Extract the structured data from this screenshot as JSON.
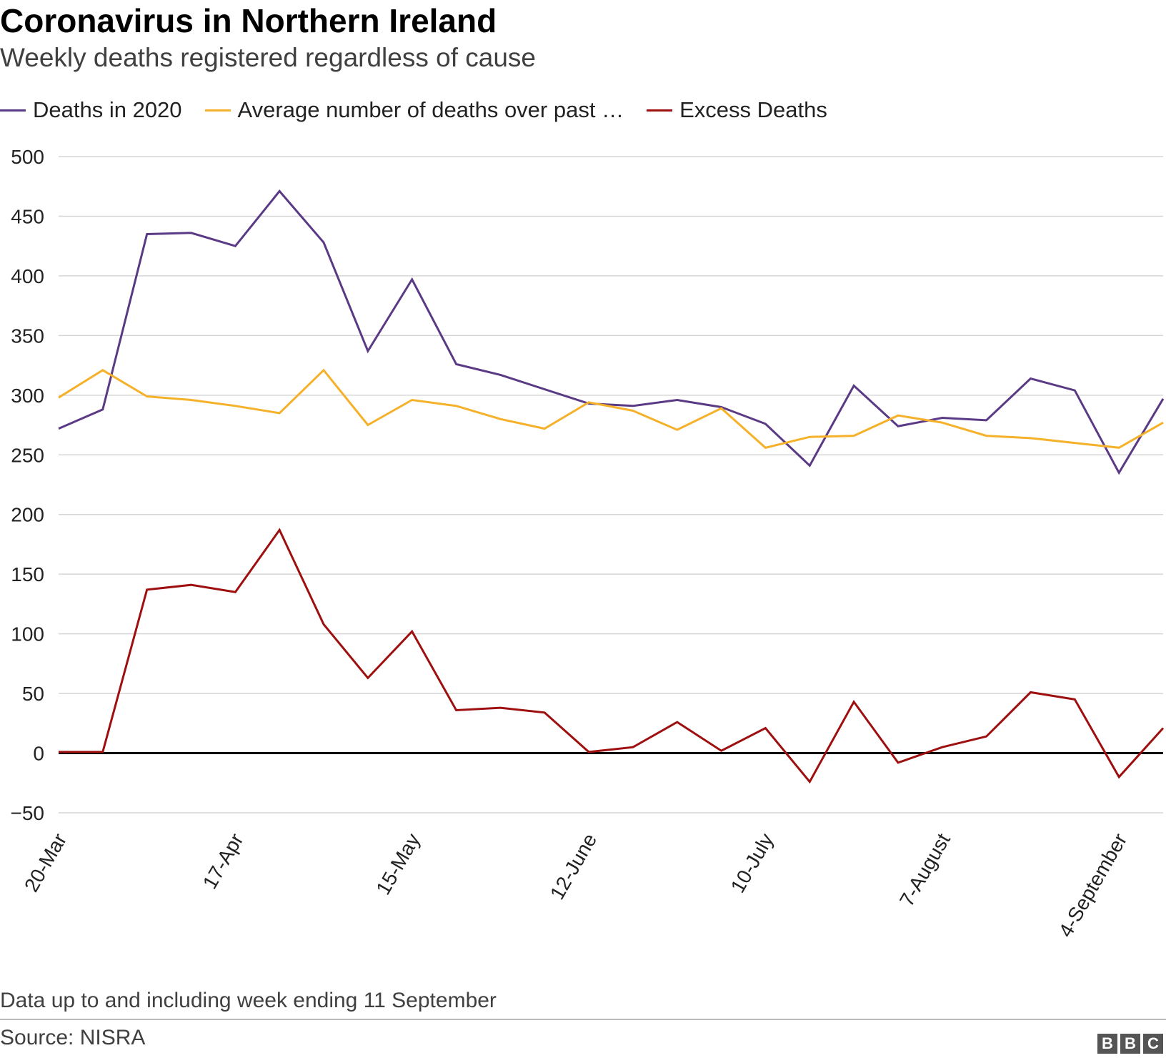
{
  "header": {
    "title": "Coronavirus in Northern Ireland",
    "subtitle": "Weekly deaths registered regardless of cause"
  },
  "legend": [
    {
      "label": "Deaths in 2020",
      "color": "#5b3a85"
    },
    {
      "label": "Average number of deaths over past …",
      "color": "#f5b12a"
    },
    {
      "label": "Excess Deaths",
      "color": "#9e1010"
    }
  ],
  "footer": {
    "note": "Data up to and including week ending 11 September",
    "source": "Source: NISRA",
    "logo_letters": [
      "B",
      "B",
      "C"
    ]
  },
  "colors": {
    "grid": "#d6d6d6",
    "zero_line": "#000000",
    "axis_text": "#222222",
    "logo": "#555555"
  },
  "chart_data": {
    "type": "line",
    "title": "Coronavirus in Northern Ireland",
    "subtitle": "Weekly deaths registered regardless of cause",
    "xlabel": "",
    "ylabel": "",
    "ylim": [
      -50,
      500
    ],
    "yticks": [
      -50,
      0,
      50,
      100,
      150,
      200,
      250,
      300,
      350,
      400,
      450,
      500
    ],
    "ytick_labels": [
      "−50",
      "0",
      "50",
      "100",
      "150",
      "200",
      "250",
      "300",
      "350",
      "400",
      "450",
      "500"
    ],
    "x_labels": [
      {
        "index": 0,
        "label": "20-Mar"
      },
      {
        "index": 4,
        "label": "17-Apr"
      },
      {
        "index": 8,
        "label": "15-May"
      },
      {
        "index": 12,
        "label": "12-June"
      },
      {
        "index": 16,
        "label": "10-July"
      },
      {
        "index": 20,
        "label": "7-August"
      },
      {
        "index": 24,
        "label": "4-September"
      }
    ],
    "n_points": 26,
    "grid": true,
    "legend_position": "top",
    "series": [
      {
        "name": "Deaths in 2020",
        "color": "#5b3a85",
        "values": [
          272,
          288,
          435,
          436,
          425,
          471,
          428,
          337,
          397,
          326,
          317,
          305,
          293,
          291,
          296,
          290,
          276,
          241,
          308,
          274,
          281,
          279,
          314,
          304,
          235,
          297
        ]
      },
      {
        "name": "Average number of deaths over past …",
        "color": "#f5b12a",
        "values": [
          298,
          321,
          299,
          296,
          291,
          285,
          321,
          275,
          296,
          291,
          280,
          272,
          294,
          287,
          271,
          289,
          256,
          265,
          266,
          283,
          277,
          266,
          264,
          260,
          256,
          277
        ]
      },
      {
        "name": "Excess Deaths",
        "color": "#9e1010",
        "values": [
          1,
          1,
          137,
          141,
          135,
          187,
          108,
          63,
          102,
          36,
          38,
          34,
          1,
          5,
          26,
          2,
          21,
          -24,
          43,
          -8,
          5,
          14,
          51,
          45,
          -20,
          21
        ]
      }
    ]
  }
}
